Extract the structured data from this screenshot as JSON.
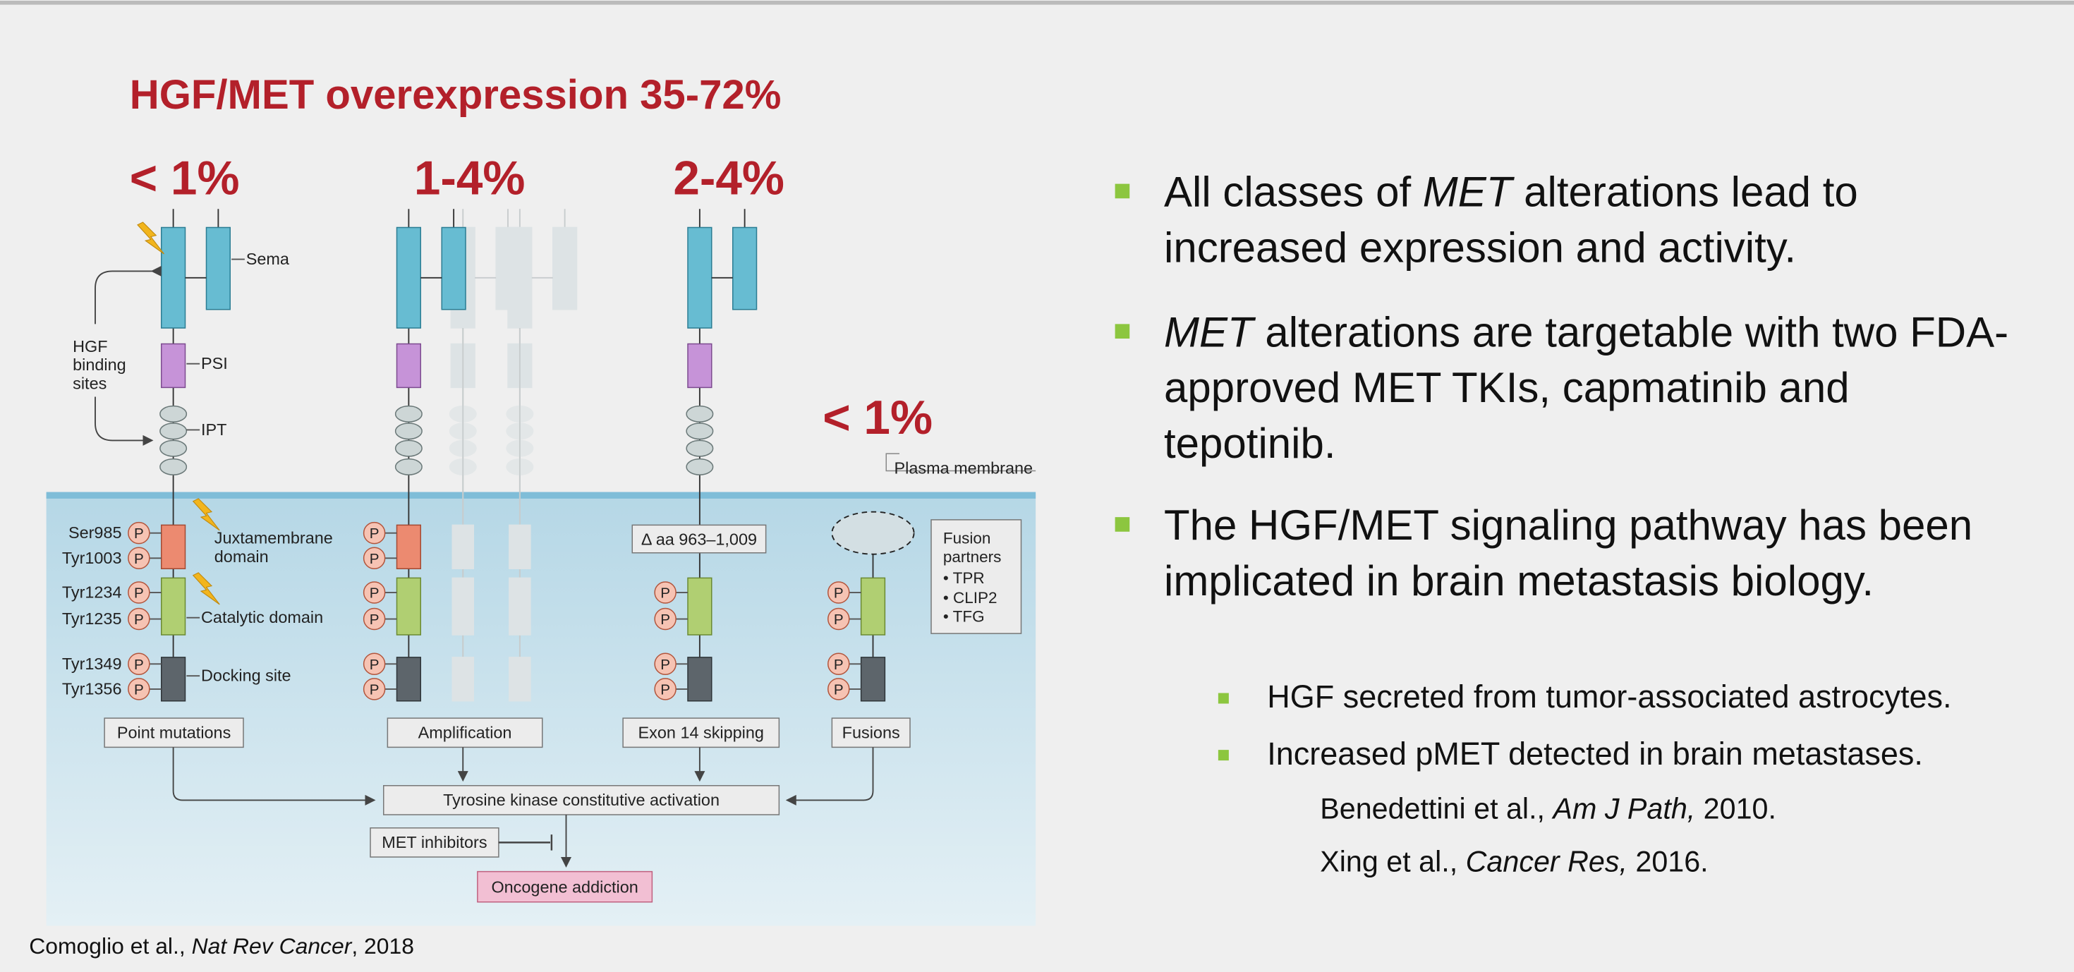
{
  "header": {
    "title": "HGF/MET overexpression 35-72%"
  },
  "frequencies": [
    "< 1%",
    "1-4%",
    "2-4%",
    "< 1%"
  ],
  "diagram": {
    "labels": {
      "sema": "Sema",
      "psi": "PSI",
      "ipt": "IPT",
      "hgf_binding_sites": "HGF binding sites",
      "plasma_membrane": "Plasma membrane",
      "juxtamembrane": "Juxtamembrane domain",
      "catalytic": "Catalytic domain",
      "docking": "Docking site",
      "deletion": "Δ aa 963–1,009",
      "phospho": "P"
    },
    "residues": [
      "Ser985",
      "Tyr1003",
      "Tyr1234",
      "Tyr1235",
      "Tyr1349",
      "Tyr1356"
    ],
    "fusion": {
      "title": "Fusion partners",
      "partners": [
        "TPR",
        "CLIP2",
        "TFG"
      ]
    },
    "classes": [
      "Point mutations",
      "Amplification",
      "Exon 14 skipping",
      "Fusions"
    ],
    "outcome": "Tyrosine kinase constitutive activation",
    "inhibitors": "MET inhibitors",
    "addiction": "Oncogene addiction"
  },
  "bullets": [
    [
      {
        "text": "All classes of "
      },
      {
        "text": "MET",
        "italic": true
      },
      {
        "text": " alterations lead to increased expression and activity."
      }
    ],
    [
      {
        "text": "MET",
        "italic": true
      },
      {
        "text": " alterations are targetable with two FDA-approved MET TKIs, capmatinib and tepotinib."
      }
    ],
    [
      {
        "text": "The HGF/MET signaling pathway has been implicated in brain metastasis biology."
      }
    ]
  ],
  "sub_bullets": [
    [
      {
        "text": "HGF secreted from tumor-associated astrocytes."
      }
    ],
    [
      {
        "text": "Increased pMET detected in brain metastases."
      }
    ]
  ],
  "references": [
    [
      {
        "text": "Benedettini et al., "
      },
      {
        "text": "Am J Path,",
        "italic": true
      },
      {
        "text": " 2010."
      }
    ],
    [
      {
        "text": "Xing et al., "
      },
      {
        "text": "Cancer Res,",
        "italic": true
      },
      {
        "text": " 2016."
      }
    ]
  ],
  "citation": [
    {
      "text": "Comoglio et al., "
    },
    {
      "text": "Nat Rev Cancer",
      "italic": true
    },
    {
      "text": ", 2018"
    }
  ]
}
